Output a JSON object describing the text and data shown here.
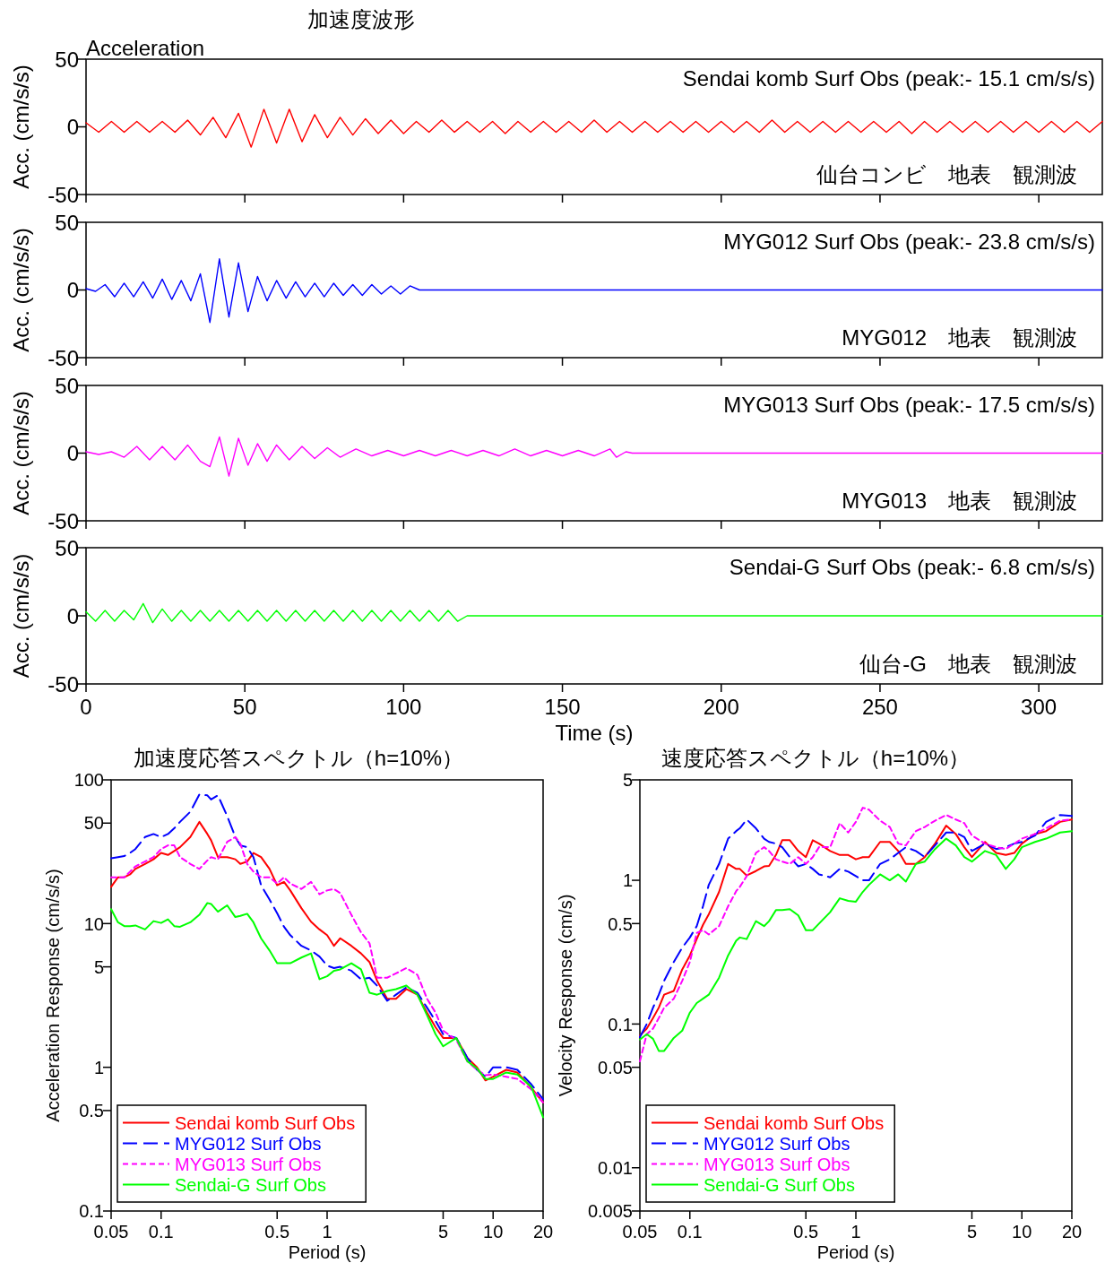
{
  "chart_data": [
    {
      "type": "line",
      "title": "加速度波形",
      "subtitle": "Acceleration",
      "ylabel": "Acc. (cm/s/s)",
      "xlim": [
        0,
        320
      ],
      "xticks": [
        0,
        50,
        100,
        150,
        200,
        250,
        300
      ],
      "ylim": [
        -50,
        50
      ],
      "yticks": [
        -50,
        0,
        50
      ],
      "tick_labels": "y",
      "annotations": [
        "Sendai komb Surf Obs (peak:- 15.1 cm/s/s)",
        "仙台コンビ　地表　観測波"
      ],
      "series": [
        {
          "color": "#ff0000",
          "x": [
            0,
            4,
            8,
            12,
            16,
            20,
            24,
            28,
            32,
            36,
            40,
            44,
            48,
            52,
            56,
            60,
            64,
            68,
            72,
            76,
            80,
            84,
            88,
            92,
            96,
            100,
            104,
            108,
            112,
            116,
            120,
            124,
            128,
            132,
            136,
            140,
            144,
            148,
            152,
            156,
            160,
            164,
            168,
            172,
            176,
            180,
            184,
            188,
            192,
            196,
            200,
            204,
            208,
            212,
            216,
            220,
            224,
            228,
            232,
            236,
            240,
            244,
            248,
            252,
            256,
            260,
            264,
            268,
            272,
            276,
            280,
            284,
            288,
            292,
            296,
            300,
            304,
            308,
            312,
            316,
            320
          ],
          "values": [
            3,
            -4,
            4,
            -4,
            4,
            -4,
            4,
            -4,
            5,
            -6,
            7,
            -8,
            10,
            -15,
            13,
            -12,
            13,
            -11,
            9,
            -8,
            7,
            -6,
            6,
            -5,
            5,
            -5,
            4,
            -4,
            5,
            -4,
            4,
            -4,
            4,
            -5,
            4,
            -4,
            4,
            -4,
            4,
            -4,
            5,
            -4,
            4,
            -4,
            4,
            -4,
            4,
            -4,
            4,
            -4,
            4,
            -4,
            4,
            -4,
            5,
            -4,
            4,
            -4,
            4,
            -4,
            4,
            -4,
            4,
            -4,
            4,
            -5,
            4,
            -4,
            4,
            -4,
            4,
            -4,
            4,
            -4,
            4,
            -4,
            4,
            -4,
            4,
            -4,
            4
          ]
        }
      ]
    },
    {
      "type": "line",
      "ylabel": "Acc. (cm/s/s)",
      "xlim": [
        0,
        320
      ],
      "xticks": [
        0,
        50,
        100,
        150,
        200,
        250,
        300
      ],
      "ylim": [
        -50,
        50
      ],
      "yticks": [
        -50,
        0,
        50
      ],
      "tick_labels": "y",
      "annotations": [
        "MYG012 Surf Obs (peak:- 23.8 cm/s/s)",
        "MYG012　地表　観測波"
      ],
      "series": [
        {
          "color": "#0000ff",
          "x": [
            0,
            3,
            6,
            9,
            12,
            15,
            18,
            21,
            24,
            27,
            30,
            33,
            36,
            39,
            42,
            45,
            48,
            51,
            54,
            57,
            60,
            63,
            66,
            69,
            72,
            75,
            78,
            81,
            84,
            87,
            90,
            93,
            96,
            99,
            102,
            105,
            320
          ],
          "values": [
            1,
            -1,
            4,
            -5,
            5,
            -5,
            6,
            -6,
            8,
            -7,
            7,
            -8,
            12,
            -24,
            23,
            -20,
            20,
            -16,
            10,
            -8,
            7,
            -6,
            6,
            -5,
            5,
            -5,
            5,
            -4,
            4,
            -4,
            4,
            -3,
            3,
            -3,
            3,
            0,
            0
          ]
        }
      ]
    },
    {
      "type": "line",
      "ylabel": "Acc. (cm/s/s)",
      "xlim": [
        0,
        320
      ],
      "xticks": [
        0,
        50,
        100,
        150,
        200,
        250,
        300
      ],
      "ylim": [
        -50,
        50
      ],
      "yticks": [
        -50,
        0,
        50
      ],
      "tick_labels": "y",
      "annotations": [
        "MYG013 Surf Obs (peak:- 17.5 cm/s/s)",
        "MYG013　地表　観測波"
      ],
      "series": [
        {
          "color": "#ff00ff",
          "x": [
            0,
            4,
            8,
            12,
            16,
            20,
            24,
            28,
            32,
            36,
            39,
            42,
            45,
            48,
            51,
            54,
            57,
            60,
            64,
            68,
            72,
            76,
            80,
            85,
            90,
            95,
            100,
            105,
            110,
            115,
            120,
            125,
            130,
            135,
            140,
            145,
            150,
            155,
            160,
            165,
            167,
            170,
            172,
            320
          ],
          "values": [
            1,
            -1,
            1,
            -3,
            5,
            -5,
            5,
            -5,
            6,
            -6,
            -10,
            12,
            -17,
            11,
            -9,
            7,
            -6,
            6,
            -5,
            5,
            -4,
            4,
            -3,
            3,
            -2,
            2,
            -2,
            2,
            -2,
            2,
            -2,
            2,
            -2,
            3,
            -2,
            2,
            -2,
            2,
            -2,
            3,
            -3,
            1,
            0,
            0
          ]
        }
      ]
    },
    {
      "type": "line",
      "ylabel": "Acc. (cm/s/s)",
      "xlabel": "Time (s)",
      "xlim": [
        0,
        320
      ],
      "xticks": [
        0,
        50,
        100,
        150,
        200,
        250,
        300
      ],
      "ylim": [
        -50,
        50
      ],
      "yticks": [
        -50,
        0,
        50
      ],
      "annotations": [
        "Sendai-G Surf Obs (peak:- 6.8 cm/s/s)",
        "仙台-G　地表　観測波"
      ],
      "series": [
        {
          "color": "#00ff00",
          "x": [
            0,
            3,
            6,
            9,
            12,
            15,
            18,
            21,
            24,
            27,
            30,
            33,
            36,
            39,
            42,
            45,
            48,
            51,
            54,
            57,
            60,
            63,
            66,
            69,
            72,
            75,
            78,
            81,
            84,
            87,
            90,
            93,
            96,
            99,
            102,
            105,
            108,
            111,
            114,
            117,
            120,
            320
          ],
          "values": [
            3,
            -4,
            4,
            -4,
            4,
            -3,
            9,
            -5,
            5,
            -4,
            4,
            -4,
            4,
            -4,
            4,
            -4,
            4,
            -4,
            4,
            -4,
            4,
            -4,
            4,
            -4,
            4,
            -4,
            4,
            -4,
            4,
            -4,
            4,
            -4,
            4,
            -4,
            4,
            -4,
            4,
            -4,
            4,
            -4,
            0,
            0
          ]
        }
      ]
    },
    {
      "type": "line",
      "title": "加速度応答スペクトル（h=10%）",
      "xlabel": "Period (s)",
      "ylabel": "Acceleration Response (cm/s/s)",
      "log": "xy",
      "xlim": [
        0.05,
        20
      ],
      "xticks": [
        0.05,
        0.1,
        0.5,
        1,
        5,
        10,
        20
      ],
      "ylim": [
        0.1,
        100
      ],
      "yticks": [
        0.1,
        0.5,
        1,
        5,
        10,
        50,
        100
      ],
      "legend": "bottom left",
      "x": [
        0.05,
        0.055,
        0.06,
        0.065,
        0.07,
        0.08,
        0.09,
        0.1,
        0.11,
        0.12,
        0.13,
        0.15,
        0.17,
        0.19,
        0.2,
        0.22,
        0.25,
        0.28,
        0.3,
        0.33,
        0.36,
        0.4,
        0.45,
        0.5,
        0.55,
        0.6,
        0.7,
        0.8,
        0.9,
        1,
        1.1,
        1.2,
        1.4,
        1.6,
        1.8,
        2,
        2.3,
        2.6,
        3,
        3.5,
        4,
        4.5,
        5,
        6,
        7,
        8,
        9,
        10,
        12,
        14,
        17,
        20
      ],
      "series": [
        {
          "name": "Sendai komb Surf Obs",
          "color": "#ff0000",
          "line_style": "solid",
          "values": [
            18,
            21,
            21,
            22,
            24,
            26,
            28,
            31,
            30,
            32,
            34,
            40,
            51,
            42,
            38,
            29,
            29,
            28,
            26,
            27,
            31,
            29,
            24,
            18.5,
            19.5,
            17,
            12.8,
            10.3,
            9.1,
            8.3,
            7.0,
            7.9,
            7.0,
            6.2,
            5.4,
            4.0,
            3.0,
            3.0,
            3.5,
            3.2,
            2.4,
            1.9,
            1.6,
            1.6,
            1.16,
            1.0,
            0.81,
            0.86,
            0.96,
            0.92,
            0.72,
            0.57
          ]
        },
        {
          "name": "MYG012 Surf Obs",
          "color": "#0000ff",
          "line_style": "dashed",
          "values": [
            28.5,
            29,
            29.5,
            31,
            33,
            40,
            42,
            40,
            42,
            46,
            51,
            60,
            79,
            78,
            73,
            78,
            56,
            40,
            35,
            34,
            29,
            18.5,
            14.7,
            11.8,
            9.5,
            8.3,
            7.0,
            6.5,
            5.9,
            5.1,
            4.9,
            5.0,
            4.7,
            4.1,
            4.2,
            3.7,
            2.9,
            3.2,
            3.6,
            3.3,
            2.6,
            2.1,
            1.7,
            1.6,
            1.16,
            0.96,
            0.86,
            1.0,
            1.0,
            0.96,
            0.76,
            0.6
          ]
        },
        {
          "name": "MYG013 Surf Obs",
          "color": "#ff00ff",
          "line_style": "dotted",
          "values": [
            21,
            21,
            21,
            23,
            25,
            27,
            29,
            33,
            35,
            35,
            29,
            26,
            24,
            27.5,
            29,
            28,
            37,
            40,
            36,
            26,
            23,
            21,
            21,
            19,
            21,
            19,
            17.4,
            19.5,
            16,
            17,
            17.4,
            16.3,
            11.5,
            8.7,
            7.3,
            4.2,
            4.2,
            4.5,
            4.9,
            4.4,
            3.0,
            2.4,
            1.8,
            1.55,
            1.1,
            0.96,
            0.88,
            0.89,
            0.86,
            0.83,
            0.7,
            0.57
          ]
        },
        {
          "name": "Sendai-G Surf Obs",
          "color": "#00ff00",
          "line_style": "solid",
          "values": [
            12.6,
            10.2,
            9.6,
            9.6,
            9.7,
            9.1,
            10.4,
            10.1,
            10.7,
            9.6,
            9.5,
            10.2,
            11.5,
            13.9,
            13.7,
            12.1,
            13.4,
            11.1,
            11.3,
            11.7,
            10.2,
            7.9,
            6.5,
            5.3,
            5.3,
            5.3,
            5.8,
            6.2,
            4.1,
            4.3,
            4.7,
            4.8,
            5.3,
            4.8,
            3.3,
            3.2,
            3.4,
            3.5,
            3.7,
            3.2,
            2.3,
            1.7,
            1.4,
            1.6,
            1.1,
            0.98,
            0.83,
            0.83,
            0.92,
            0.89,
            0.73,
            0.45
          ]
        }
      ]
    },
    {
      "type": "line",
      "title": "速度応答スペクトル（h=10%）",
      "xlabel": "Period (s)",
      "ylabel": "Velocity Response (cm/s)",
      "log": "xy",
      "xlim": [
        0.05,
        20
      ],
      "xticks": [
        0.05,
        0.1,
        0.5,
        1,
        5,
        10,
        20
      ],
      "ylim": [
        0.005,
        5
      ],
      "yticks": [
        0.005,
        0.01,
        0.05,
        0.1,
        0.5,
        1,
        5
      ],
      "legend": "bottom left",
      "x": [
        0.05,
        0.055,
        0.06,
        0.065,
        0.07,
        0.08,
        0.09,
        0.1,
        0.11,
        0.12,
        0.13,
        0.15,
        0.17,
        0.19,
        0.2,
        0.22,
        0.25,
        0.28,
        0.3,
        0.33,
        0.36,
        0.4,
        0.45,
        0.5,
        0.55,
        0.6,
        0.7,
        0.8,
        0.9,
        1,
        1.1,
        1.2,
        1.4,
        1.6,
        1.8,
        2,
        2.3,
        2.6,
        3,
        3.5,
        4,
        4.5,
        5,
        6,
        7,
        8,
        9,
        10,
        12,
        14,
        17,
        20
      ],
      "series": [
        {
          "name": "Sendai komb Surf Obs",
          "color": "#ff0000",
          "line_style": "solid",
          "values": [
            0.083,
            0.093,
            0.11,
            0.13,
            0.16,
            0.17,
            0.24,
            0.3,
            0.39,
            0.49,
            0.58,
            0.83,
            1.3,
            1.2,
            1.2,
            1.08,
            1.16,
            1.25,
            1.26,
            1.5,
            1.9,
            1.9,
            1.6,
            1.45,
            1.9,
            1.8,
            1.6,
            1.5,
            1.5,
            1.4,
            1.45,
            1.45,
            1.85,
            1.85,
            1.6,
            1.3,
            1.3,
            1.45,
            1.8,
            2.4,
            2.1,
            1.7,
            1.45,
            1.85,
            1.55,
            1.5,
            1.55,
            1.8,
            2.1,
            2.2,
            2.55,
            2.65
          ]
        },
        {
          "name": "MYG012 Surf Obs",
          "color": "#0000ff",
          "line_style": "dashed",
          "values": [
            0.081,
            0.1,
            0.13,
            0.16,
            0.2,
            0.27,
            0.34,
            0.4,
            0.48,
            0.66,
            0.93,
            1.3,
            1.95,
            2.2,
            2.3,
            2.65,
            2.3,
            1.95,
            1.85,
            1.8,
            1.7,
            1.45,
            1.25,
            1.3,
            1.2,
            1.1,
            1.05,
            1.2,
            1.15,
            1.07,
            1.0,
            1.0,
            1.3,
            1.4,
            1.55,
            1.7,
            1.6,
            1.45,
            1.75,
            2.15,
            2.15,
            2.0,
            1.6,
            1.8,
            1.65,
            1.7,
            1.8,
            1.85,
            2.05,
            2.55,
            2.85,
            2.8
          ]
        },
        {
          "name": "MYG013 Surf Obs",
          "color": "#ff00ff",
          "line_style": "dotted",
          "values": [
            0.055,
            0.085,
            0.093,
            0.11,
            0.13,
            0.15,
            0.2,
            0.27,
            0.43,
            0.45,
            0.42,
            0.48,
            0.66,
            0.84,
            0.9,
            1.07,
            1.55,
            1.7,
            1.6,
            1.4,
            1.35,
            1.3,
            1.45,
            1.3,
            1.45,
            1.7,
            1.7,
            2.5,
            2.15,
            2.55,
            3.2,
            3.1,
            2.6,
            2.35,
            1.8,
            1.75,
            2.2,
            2.35,
            2.6,
            2.85,
            2.65,
            2.5,
            2.05,
            1.8,
            1.7,
            1.65,
            1.8,
            1.95,
            2.1,
            2.3,
            2.6,
            2.65
          ]
        },
        {
          "name": "Sendai-G Surf Obs",
          "color": "#00ff00",
          "line_style": "solid",
          "values": [
            0.078,
            0.085,
            0.079,
            0.065,
            0.065,
            0.08,
            0.09,
            0.12,
            0.14,
            0.15,
            0.16,
            0.21,
            0.3,
            0.38,
            0.4,
            0.39,
            0.52,
            0.48,
            0.52,
            0.62,
            0.62,
            0.63,
            0.57,
            0.45,
            0.45,
            0.5,
            0.6,
            0.75,
            0.72,
            0.71,
            0.83,
            0.93,
            1.1,
            1.0,
            1.1,
            0.98,
            1.3,
            1.35,
            1.65,
            1.95,
            1.75,
            1.45,
            1.35,
            1.6,
            1.5,
            1.2,
            1.4,
            1.7,
            1.85,
            1.95,
            2.15,
            2.2
          ]
        }
      ]
    }
  ]
}
